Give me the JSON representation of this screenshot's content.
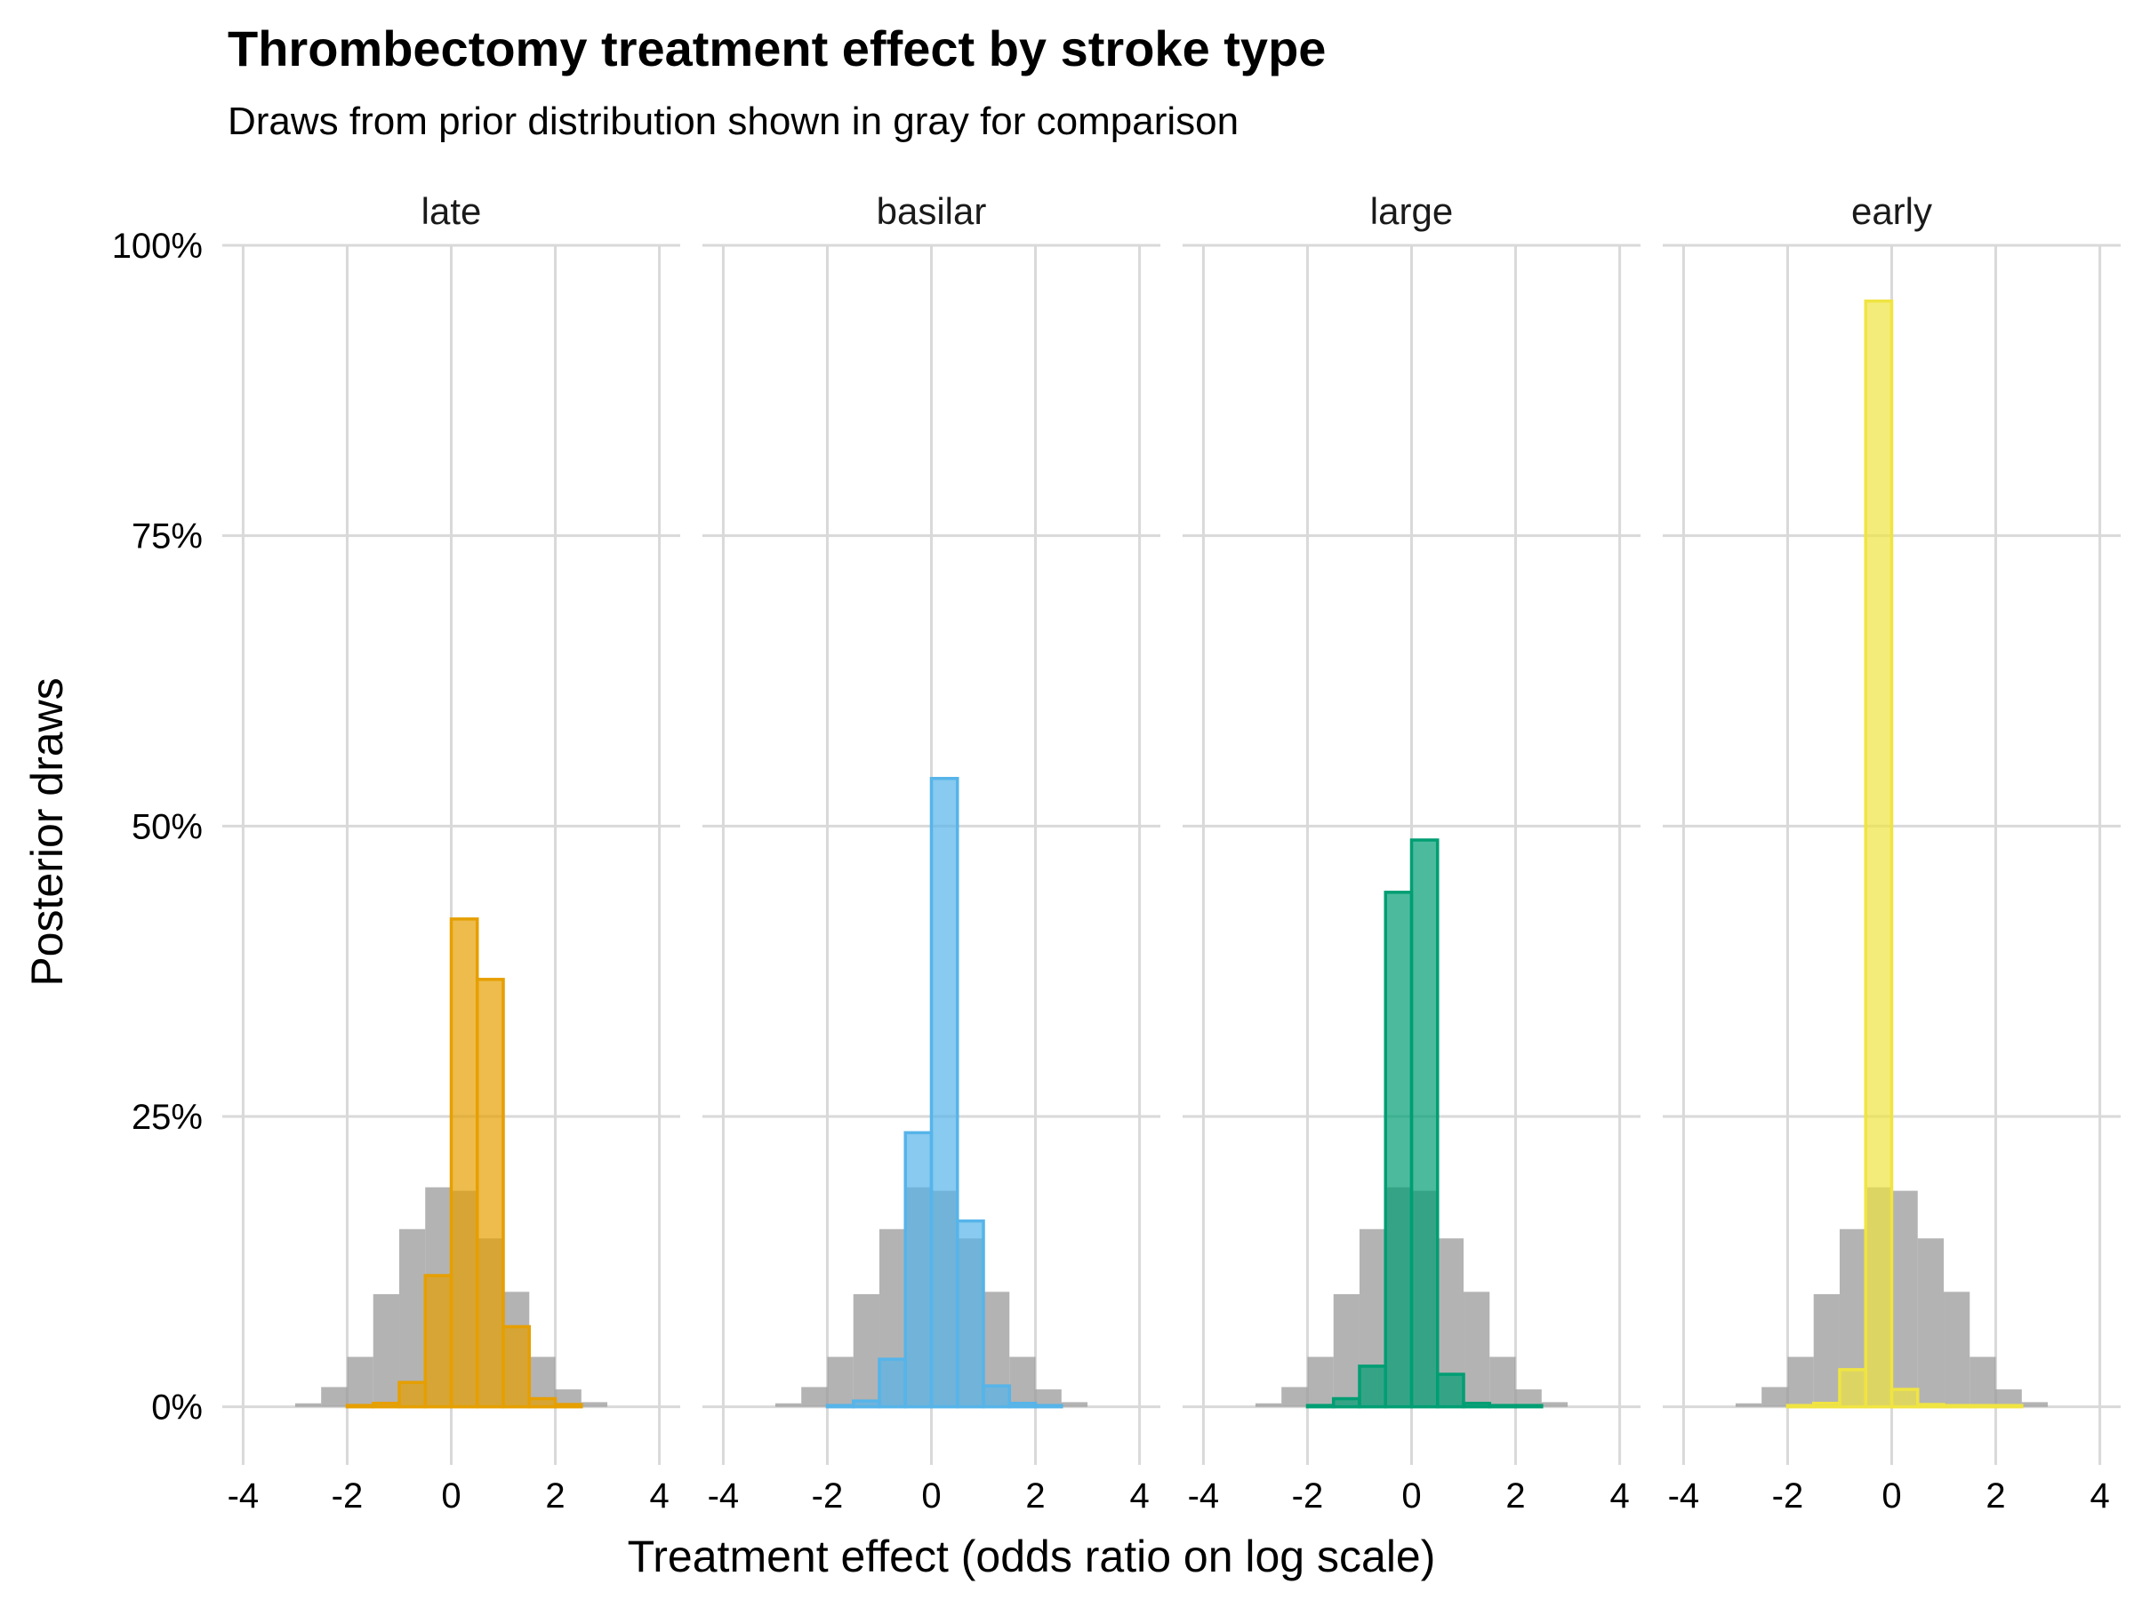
{
  "chart_data": {
    "type": "bar",
    "title": "Thrombectomy treatment effect by stroke type",
    "subtitle": "Draws from prior distribution shown in gray for comparison",
    "xlabel": "Treatment effect (odds ratio on log scale)",
    "ylabel": "Posterior draws",
    "xlim": [
      -4.4,
      4.4
    ],
    "ylim": [
      -0.05,
      1.0
    ],
    "x_ticks": [
      -4,
      -2,
      0,
      2,
      4
    ],
    "x_tick_labels": [
      "-4",
      "-2",
      "0",
      "2",
      "4"
    ],
    "y_ticks": [
      0,
      0.25,
      0.5,
      0.75,
      1.0
    ],
    "y_tick_labels": [
      "0%",
      "25%",
      "50%",
      "75%",
      "100%"
    ],
    "grid": true,
    "bin_width": 0.5,
    "bin_centers": [
      -3.25,
      -2.75,
      -2.25,
      -1.75,
      -1.25,
      -0.75,
      -0.25,
      0.25,
      0.75,
      1.25,
      1.75,
      2.25,
      2.75,
      3.25
    ],
    "prior": {
      "name": "prior",
      "color": "#999999",
      "values": [
        0.0,
        0.003,
        0.017,
        0.043,
        0.097,
        0.153,
        0.189,
        0.186,
        0.145,
        0.099,
        0.043,
        0.015,
        0.004,
        0.0
      ]
    },
    "panels": [
      {
        "strip": "late",
        "color": "#E69F00",
        "values": [
          0.0,
          0.0,
          0.0,
          0.001,
          0.003,
          0.021,
          0.113,
          0.42,
          0.368,
          0.069,
          0.007,
          0.002,
          0.0,
          0.0
        ]
      },
      {
        "strip": "basilar",
        "color": "#56B4E9",
        "values": [
          0.0,
          0.0,
          0.0,
          0.001,
          0.005,
          0.041,
          0.236,
          0.541,
          0.16,
          0.018,
          0.003,
          0.001,
          0.0,
          0.0
        ]
      },
      {
        "strip": "large",
        "color": "#009E73",
        "values": [
          0.0,
          0.0,
          0.0,
          0.001,
          0.007,
          0.035,
          0.443,
          0.488,
          0.028,
          0.003,
          0.001,
          0.0,
          0.0,
          0.0
        ]
      },
      {
        "strip": "early",
        "color": "#F0E442",
        "values": [
          0.0,
          0.0,
          0.0,
          0.001,
          0.003,
          0.032,
          0.952,
          0.015,
          0.002,
          0.001,
          0.0,
          0.0,
          0.0,
          0.0
        ]
      }
    ]
  }
}
